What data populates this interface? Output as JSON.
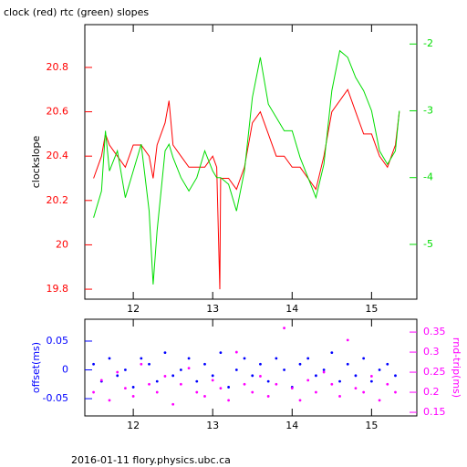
{
  "chart_data": [
    {
      "type": "line",
      "title": "clock (red) rtc (green) slopes",
      "ylabel": "clockslope",
      "x": [
        11.5,
        11.6,
        11.65,
        11.7,
        11.8,
        11.9,
        12.0,
        12.1,
        12.2,
        12.25,
        12.3,
        12.4,
        12.45,
        12.5,
        12.6,
        12.7,
        12.8,
        12.9,
        13.0,
        13.05,
        13.09,
        13.1,
        13.2,
        13.3,
        13.4,
        13.5,
        13.6,
        13.7,
        13.8,
        13.9,
        14.0,
        14.1,
        14.2,
        14.3,
        14.4,
        14.5,
        14.6,
        14.7,
        14.8,
        14.9,
        15.0,
        15.1,
        15.2,
        15.3,
        15.35
      ],
      "series": [
        {
          "color": "#ff0000",
          "values": [
            20.3,
            20.4,
            20.5,
            20.45,
            20.4,
            20.35,
            20.45,
            20.45,
            20.4,
            20.3,
            20.45,
            20.55,
            20.65,
            20.45,
            20.4,
            20.35,
            20.35,
            20.35,
            20.4,
            20.35,
            19.8,
            20.3,
            20.3,
            20.25,
            20.35,
            20.55,
            20.6,
            20.5,
            20.4,
            20.4,
            20.35,
            20.35,
            20.3,
            20.25,
            20.4,
            20.6,
            20.65,
            20.7,
            20.6,
            20.5,
            20.5,
            20.4,
            20.35,
            20.45,
            20.6
          ]
        },
        {
          "color": "#00dd00",
          "axis": "y2",
          "values": [
            -4.6,
            -4.2,
            -3.3,
            -3.9,
            -3.6,
            -4.3,
            -3.9,
            -3.5,
            -4.5,
            -5.6,
            -4.8,
            -3.6,
            -3.5,
            -3.7,
            -4.0,
            -4.2,
            -4.0,
            -3.6,
            -3.9,
            -4.0,
            -4.0,
            -4.0,
            -4.1,
            -4.5,
            -3.9,
            -2.8,
            -2.2,
            -2.9,
            -3.1,
            -3.3,
            -3.3,
            -3.7,
            -4.0,
            -4.3,
            -3.8,
            -2.7,
            -2.1,
            -2.2,
            -2.5,
            -2.7,
            -3.0,
            -3.6,
            -3.8,
            -3.6,
            -3.0
          ]
        }
      ],
      "xlim": [
        11.39,
        15.57
      ],
      "xticks": [
        12,
        13,
        14,
        15
      ],
      "ylim": [
        19.755,
        20.993
      ],
      "yticks": [
        19.8,
        20,
        20.2,
        20.4,
        20.6,
        20.8
      ],
      "y2lim": [
        -5.82,
        -1.71
      ],
      "y2ticks": [
        -5,
        -4,
        -3,
        -2
      ]
    },
    {
      "type": "scatter",
      "ylabel": "offset(ms)",
      "y2label": "rnd-trip(ms)",
      "x": [
        11.5,
        11.6,
        11.7,
        11.8,
        11.9,
        12.0,
        12.1,
        12.2,
        12.3,
        12.4,
        12.5,
        12.6,
        12.7,
        12.8,
        12.9,
        13.0,
        13.1,
        13.2,
        13.3,
        13.4,
        13.5,
        13.6,
        13.7,
        13.8,
        13.9,
        14.0,
        14.1,
        14.2,
        14.3,
        14.4,
        14.5,
        14.6,
        14.7,
        14.8,
        14.9,
        15.0,
        15.1,
        15.2,
        15.3
      ],
      "series": [
        {
          "color": "#0000ff",
          "values": [
            0.01,
            -0.02,
            0.02,
            -0.01,
            0,
            -0.03,
            0.02,
            0.01,
            -0.02,
            0.03,
            -0.01,
            0,
            0.02,
            -0.02,
            0.01,
            -0.01,
            0.03,
            -0.03,
            0,
            0.02,
            -0.01,
            0.01,
            -0.02,
            0.02,
            0,
            -0.03,
            0.01,
            0.02,
            -0.01,
            0,
            0.03,
            -0.02,
            0.01,
            -0.01,
            0.02,
            -0.02,
            0,
            0.01,
            -0.01
          ]
        },
        {
          "color": "#ff00ff",
          "axis": "y2",
          "values": [
            0.2,
            0.23,
            0.18,
            0.25,
            0.21,
            0.19,
            0.27,
            0.22,
            0.2,
            0.24,
            0.17,
            0.22,
            0.26,
            0.2,
            0.19,
            0.23,
            0.21,
            0.18,
            0.3,
            0.22,
            0.2,
            0.24,
            0.19,
            0.22,
            0.36,
            0.21,
            0.18,
            0.23,
            0.2,
            0.25,
            0.22,
            0.19,
            0.33,
            0.21,
            0.2,
            0.24,
            0.18,
            0.22,
            0.2
          ]
        }
      ],
      "xlim": [
        11.39,
        15.57
      ],
      "xticks": [
        12,
        13,
        14,
        15
      ],
      "ylim": [
        -0.08,
        0.088
      ],
      "yticks": [
        {
          "value": -0.05,
          "label": "-0.05"
        },
        0,
        0.05
      ],
      "y2lim": [
        0.141,
        0.382
      ],
      "y2ticks": [
        0.15,
        0.2,
        0.25,
        0.3,
        0.35
      ]
    }
  ],
  "footer": "2016-01-11 flory.physics.ubc.ca"
}
